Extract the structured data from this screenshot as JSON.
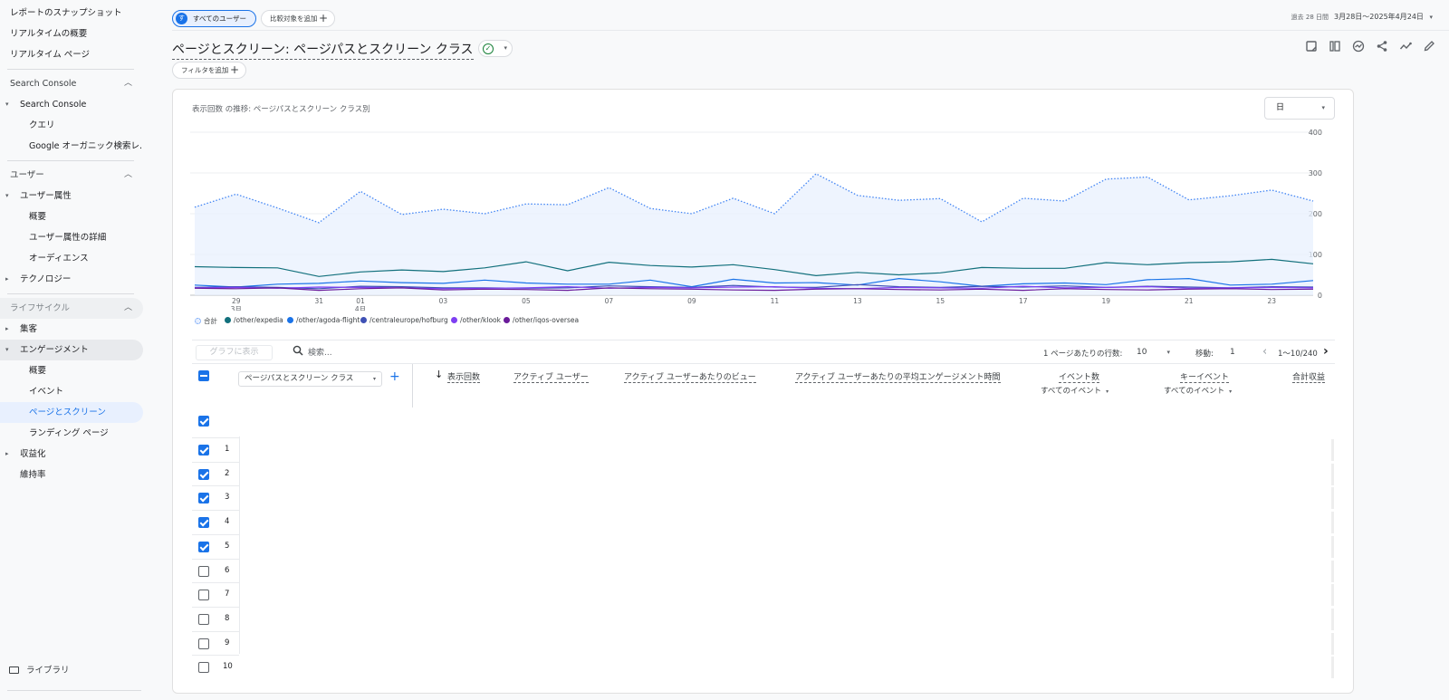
{
  "sidebar": {
    "items": [
      {
        "label": "レポートのスナップショット"
      },
      {
        "label": "リアルタイムの概要"
      },
      {
        "label": "リアルタイム ページ"
      },
      {
        "label": "Search Console"
      },
      {
        "label": "Search Console"
      },
      {
        "label": "クエリ"
      },
      {
        "label": "Google オーガニック検索レ..."
      },
      {
        "label": "ユーザー"
      },
      {
        "label": "ユーザー属性"
      },
      {
        "label": "概要"
      },
      {
        "label": "ユーザー属性の詳細"
      },
      {
        "label": "オーディエンス"
      },
      {
        "label": "テクノロジー"
      },
      {
        "label": "ライフサイクル"
      },
      {
        "label": "集客"
      },
      {
        "label": "エンゲージメント"
      },
      {
        "label": "概要"
      },
      {
        "label": "イベント"
      },
      {
        "label": "ページとスクリーン"
      },
      {
        "label": "ランディング ページ"
      },
      {
        "label": "収益化"
      },
      {
        "label": "維持率"
      }
    ],
    "library": "ライブラリ"
  },
  "topbar": {
    "all_users_avatar": "す",
    "all_users": "すべてのユーザー",
    "add_compare": "比較対象を追加",
    "date_label": "過去 28 日間",
    "date_range": "3月28日～2025年4月24日"
  },
  "report": {
    "title": "ページとスクリーン: ページパスとスクリーン クラス",
    "add_filter": "フィルタを追加"
  },
  "chart_panel": {
    "title": "表示回数 の推移: ページパスとスクリーン クラス別",
    "period": "日"
  },
  "chart_data": {
    "type": "line",
    "title": "表示回数 の推移: ページパスとスクリーン クラス別",
    "ylim": [
      0,
      400
    ],
    "yticks": [
      "0",
      "100",
      "200",
      "300",
      "400"
    ],
    "x": [
      "3/28",
      "3/29",
      "3/30",
      "3/31",
      "4/1",
      "4/2",
      "4/3",
      "4/4",
      "4/5",
      "4/6",
      "4/7",
      "4/8",
      "4/9",
      "4/10",
      "4/11",
      "4/12",
      "4/13",
      "4/14",
      "4/15",
      "4/16",
      "4/17",
      "4/18",
      "4/19",
      "4/20",
      "4/21",
      "4/22",
      "4/23",
      "4/24"
    ],
    "xticks": [
      {
        "i": 1,
        "label": "29",
        "sub": "3月"
      },
      {
        "i": 3,
        "label": "31",
        "sub": ""
      },
      {
        "i": 4,
        "label": "01",
        "sub": "4月"
      },
      {
        "i": 6,
        "label": "03",
        "sub": ""
      },
      {
        "i": 8,
        "label": "05",
        "sub": ""
      },
      {
        "i": 10,
        "label": "07",
        "sub": ""
      },
      {
        "i": 12,
        "label": "09",
        "sub": ""
      },
      {
        "i": 14,
        "label": "11",
        "sub": ""
      },
      {
        "i": 16,
        "label": "13",
        "sub": ""
      },
      {
        "i": 18,
        "label": "15",
        "sub": ""
      },
      {
        "i": 20,
        "label": "17",
        "sub": ""
      },
      {
        "i": 22,
        "label": "19",
        "sub": ""
      },
      {
        "i": 24,
        "label": "21",
        "sub": ""
      },
      {
        "i": 26,
        "label": "23",
        "sub": ""
      }
    ],
    "grid": true,
    "legend": "bottom-left",
    "series": [
      {
        "name": "合計",
        "color": "#4285f4",
        "dotted": true,
        "area": true,
        "values": [
          216,
          248,
          214,
          178,
          255,
          198,
          211,
          200,
          224,
          222,
          264,
          213,
          200,
          238,
          200,
          298,
          245,
          233,
          237,
          180,
          238,
          231,
          285,
          290,
          234,
          244,
          258,
          231
        ]
      },
      {
        "name": "/other/expedia",
        "color": "#12707c",
        "values": [
          70,
          68,
          67,
          46,
          57,
          62,
          58,
          67,
          82,
          60,
          81,
          73,
          69,
          75,
          63,
          48,
          56,
          50,
          55,
          68,
          66,
          66,
          80,
          75,
          80,
          82,
          88,
          77
        ]
      },
      {
        "name": "/other/agoda-flight",
        "color": "#1a73e8",
        "values": [
          25,
          20,
          27,
          29,
          35,
          31,
          29,
          37,
          30,
          27,
          27,
          37,
          21,
          39,
          30,
          31,
          25,
          41,
          33,
          22,
          28,
          30,
          26,
          38,
          41,
          25,
          27,
          36
        ]
      },
      {
        "name": "/centraleurope/hofburg",
        "color": "#3f51b5",
        "values": [
          19,
          21,
          19,
          16,
          22,
          21,
          18,
          18,
          17,
          18,
          23,
          21,
          19,
          24,
          20,
          19,
          26,
          21,
          19,
          22,
          20,
          23,
          19,
          22,
          20,
          18,
          21,
          20
        ]
      },
      {
        "name": "/other/klook",
        "color": "#7e3ff2",
        "values": [
          18,
          19,
          17,
          20,
          19,
          18,
          16,
          17,
          18,
          21,
          17,
          19,
          18,
          20,
          21,
          17,
          16,
          19,
          18,
          17,
          22,
          18,
          19,
          21,
          17,
          18,
          19,
          18
        ]
      },
      {
        "name": "/other/iqos-oversea",
        "color": "#6a1b9a",
        "values": [
          17,
          16,
          18,
          12,
          16,
          18,
          13,
          15,
          14,
          12,
          18,
          16,
          15,
          13,
          12,
          15,
          16,
          14,
          13,
          15,
          12,
          16,
          14,
          13,
          15,
          16,
          14,
          15
        ]
      }
    ]
  },
  "table": {
    "graph_button": "グラフに表示",
    "search_placeholder": "検索...",
    "rows_per_page_label": "1 ページあたりの行数:",
    "rows_per_page": "10",
    "goto_label": "移動:",
    "goto_value": "1",
    "pagination": "1〜10/240",
    "dimension": "ページパスとスクリーン クラス",
    "columns": [
      {
        "label": "表示回数",
        "sub": ""
      },
      {
        "label": "アクティブ ユーザー",
        "sub": ""
      },
      {
        "label": "アクティブ ユーザーあたりのビュー",
        "sub": ""
      },
      {
        "label": "アクティブ ユーザーあたりの平均エンゲージメント時間",
        "sub": ""
      },
      {
        "label": "イベント数",
        "sub": "すべてのイベント"
      },
      {
        "label": "キーイベント",
        "sub": "すべてのイベント"
      },
      {
        "label": "合計収益",
        "sub": ""
      }
    ],
    "rows": [
      {
        "num": "1",
        "checked": true
      },
      {
        "num": "2",
        "checked": true
      },
      {
        "num": "3",
        "checked": true
      },
      {
        "num": "4",
        "checked": true
      },
      {
        "num": "5",
        "checked": true
      },
      {
        "num": "6",
        "checked": false
      },
      {
        "num": "7",
        "checked": false
      },
      {
        "num": "8",
        "checked": false
      },
      {
        "num": "9",
        "checked": false
      },
      {
        "num": "10",
        "checked": false
      }
    ]
  }
}
